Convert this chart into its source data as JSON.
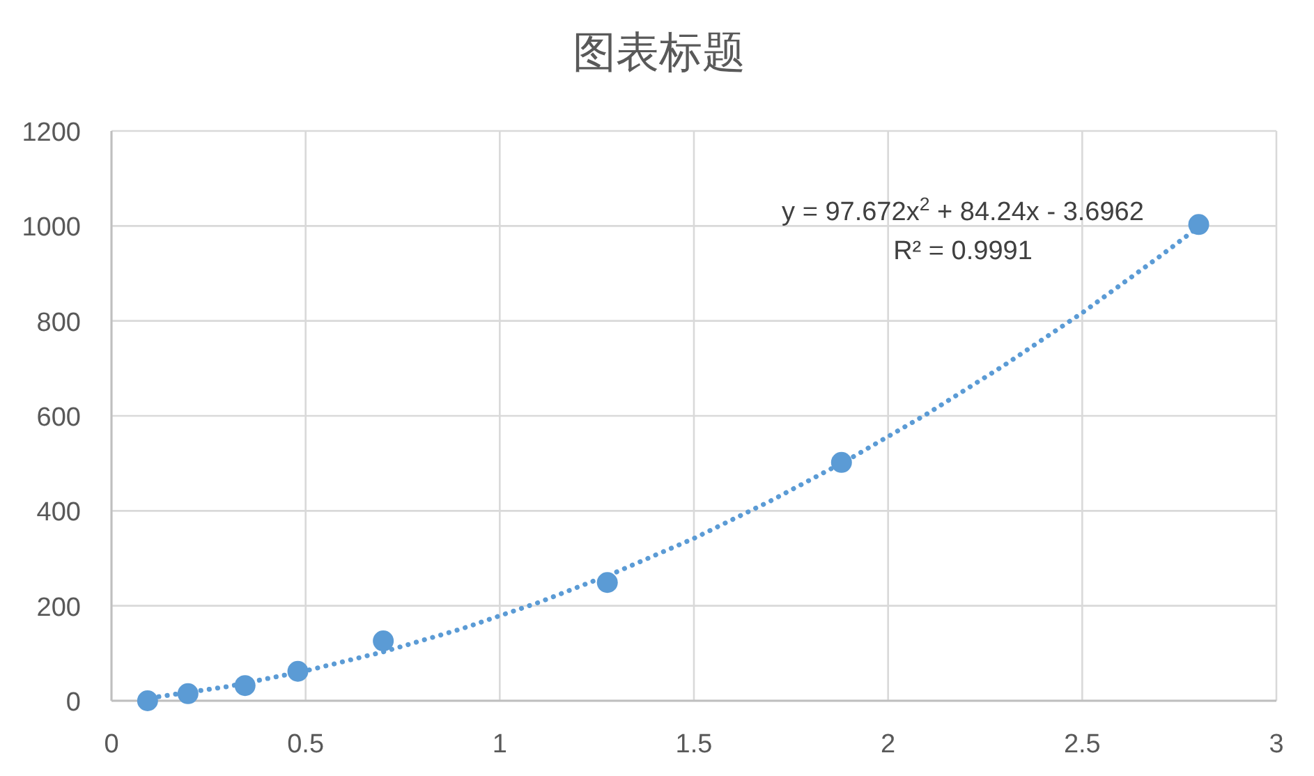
{
  "chart_data": {
    "type": "scatter",
    "title": "图表标题",
    "xlim": [
      0,
      3
    ],
    "xticks": [
      0,
      0.5,
      1,
      1.5,
      2,
      2.5,
      3
    ],
    "ylim": [
      0,
      1200
    ],
    "yticks": [
      0,
      200,
      400,
      600,
      800,
      1000,
      1200
    ],
    "grid": true,
    "marker": "circle",
    "series": [
      {
        "color": "#5b9bd5",
        "x": [
          0.093,
          0.197,
          0.344,
          0.48,
          0.7,
          1.277,
          1.88,
          2.8
        ],
        "values": [
          0,
          15,
          32,
          62,
          126,
          249,
          502,
          1003
        ]
      },
      {
        "type": "line",
        "color": "#5b9bd5",
        "line_style": "dotted",
        "marker": "none",
        "x": [
          0.1,
          0.3,
          0.5,
          0.7,
          0.9,
          1.1,
          1.3,
          1.5,
          1.7,
          1.9,
          2.1,
          2.3,
          2.5,
          2.7,
          2.8
        ],
        "values": [
          6,
          30,
          63,
          103,
          151,
          207,
          271,
          342,
          422,
          509,
          604,
          707,
          817,
          936,
          998
        ]
      }
    ],
    "annotations": [
      "y = 97.672x$^{2}$ + 84.24x - 3.6962",
      "R² = 0.9991"
    ]
  }
}
